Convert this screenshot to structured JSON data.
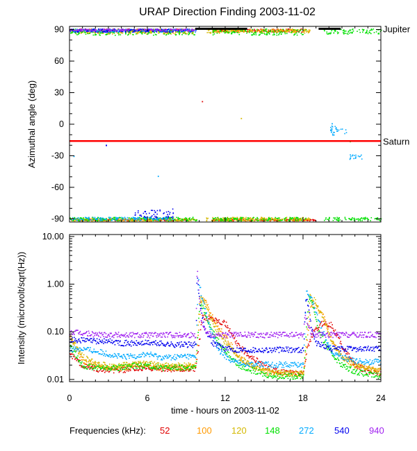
{
  "title": "URAP Direction Finding  2003-11-02",
  "colors": {
    "52": "#e00000",
    "100": "#ff9900",
    "120": "#d4b800",
    "148": "#00e000",
    "272": "#00aaff",
    "540": "#0000ee",
    "940": "#a020f0",
    "saturn_line": "#ff0000",
    "jupiter_line": "#000000"
  },
  "chart_data": [
    {
      "type": "scatter",
      "panel": "top",
      "title": "",
      "xlabel": "",
      "ylabel": "Azimuthal angle (deg)",
      "xlim": [
        0,
        24
      ],
      "ylim": [
        -93,
        93
      ],
      "yticks": [
        90,
        60,
        30,
        0,
        -30,
        -60,
        -90
      ],
      "yticklabels": [
        "90",
        "60",
        "30",
        "0",
        "-30",
        "-60",
        "-90"
      ],
      "reference_lines": [
        {
          "label": "Jupiter",
          "y": 90
        },
        {
          "label": "Saturn",
          "y": -16
        }
      ],
      "jupiter_segments": [
        [
          9.7,
          13.7
        ],
        [
          19.2,
          20.9
        ]
      ],
      "series_bands": [
        {
          "freq": "52",
          "clusters": [
            [
              0,
              9.8,
              89,
              91
            ],
            [
              11,
              18,
              88,
              91
            ],
            [
              0.5,
              9,
              -90,
              -91.5
            ],
            [
              11,
              19,
              -90,
              -91.5
            ]
          ]
        },
        {
          "freq": "100",
          "clusters": [
            [
              0,
              9.5,
              87,
              91
            ],
            [
              11,
              18.5,
              88,
              91
            ],
            [
              0,
              9.5,
              -89,
              -91.5
            ],
            [
              11,
              18.5,
              -89,
              -91.5
            ]
          ]
        },
        {
          "freq": "120",
          "clusters": [
            [
              0,
              9.8,
              86,
              91
            ],
            [
              10.5,
              18.5,
              87,
              91
            ],
            [
              0,
              9.8,
              -89,
              -91.5
            ],
            [
              10.5,
              18.5,
              -88,
              -91.5
            ]
          ]
        },
        {
          "freq": "148",
          "clusters": [
            [
              0,
              9.8,
              85,
              91
            ],
            [
              11,
              18.2,
              85,
              91
            ],
            [
              19.5,
              24,
              86,
              91
            ],
            [
              0,
              9.8,
              -88,
              -91.5
            ],
            [
              11,
              18.2,
              -88,
              -91.5
            ],
            [
              19.5,
              24,
              -88,
              -91.5
            ]
          ]
        },
        {
          "freq": "272",
          "clusters": [
            [
              0,
              9.8,
              88,
              91
            ],
            [
              20,
              21.5,
              -10,
              0
            ],
            [
              21.5,
              22.5,
              -28,
              -33
            ],
            [
              0,
              8,
              -88,
              -91
            ]
          ]
        },
        {
          "freq": "540",
          "clusters": [
            [
              0,
              9.5,
              88,
              91
            ],
            [
              2.8,
              2.8,
              -19,
              -20
            ],
            [
              5,
              8,
              -80,
              -89
            ]
          ]
        },
        {
          "freq": "940",
          "clusters": [
            [
              0,
              9.7,
              89,
              91
            ]
          ]
        }
      ],
      "isolated_points": [
        {
          "freq": "52",
          "x": 10.2,
          "y": 22
        },
        {
          "freq": "120",
          "x": 13.2,
          "y": 6
        },
        {
          "freq": "272",
          "x": 20.2,
          "y": 1
        },
        {
          "freq": "272",
          "x": 6.8,
          "y": -49
        },
        {
          "freq": "148",
          "x": 21.6,
          "y": -16
        },
        {
          "freq": "272",
          "x": 0.3,
          "y": -30
        }
      ]
    },
    {
      "type": "scatter",
      "panel": "bottom",
      "title": "",
      "xlabel": "time - hours on 2003-11-02",
      "ylabel": "Intensity (microvolt/sqrt(Hz))",
      "xlim": [
        0,
        24
      ],
      "ylim": [
        0.009,
        11
      ],
      "yscale": "log",
      "xticks": [
        0,
        6,
        12,
        18,
        24
      ],
      "xticklabels": [
        "0",
        "6",
        "12",
        "18",
        "24"
      ],
      "yticks": [
        10,
        1,
        0.1,
        0.01
      ],
      "yticklabels": [
        "10.00",
        "1.00",
        "0.10",
        "0.01"
      ],
      "series": [
        {
          "name": "52",
          "x": [
            0,
            1,
            2,
            3,
            4,
            5,
            6,
            7,
            8,
            9,
            9.7,
            10.2,
            10.6,
            11,
            12,
            13,
            14,
            15,
            16,
            17,
            18,
            18.3,
            18.8,
            19.5,
            20.2,
            21,
            22,
            23,
            24
          ],
          "y": [
            0.035,
            0.02,
            0.017,
            0.016,
            0.016,
            0.017,
            0.018,
            0.017,
            0.017,
            0.017,
            0.017,
            0.2,
            0.2,
            0.2,
            0.15,
            0.05,
            0.03,
            0.02,
            0.015,
            0.014,
            0.014,
            0.05,
            0.1,
            0.16,
            0.14,
            0.05,
            0.02,
            0.015,
            0.014
          ]
        },
        {
          "name": "100",
          "x": [
            0,
            1,
            2,
            3,
            4,
            5,
            6,
            7,
            8,
            9,
            9.7,
            10.1,
            10.5,
            11,
            12,
            13,
            14,
            15,
            16,
            17,
            18,
            18.6,
            19,
            19.6,
            20.2,
            21,
            22,
            23,
            24
          ],
          "y": [
            0.08,
            0.025,
            0.02,
            0.018,
            0.018,
            0.02,
            0.02,
            0.018,
            0.018,
            0.018,
            0.02,
            0.5,
            0.4,
            0.2,
            0.08,
            0.03,
            0.02,
            0.015,
            0.013,
            0.013,
            0.013,
            0.4,
            0.35,
            0.2,
            0.06,
            0.03,
            0.02,
            0.018,
            0.016
          ]
        },
        {
          "name": "120",
          "x": [
            0,
            1,
            2,
            3,
            4,
            5,
            6,
            7,
            8,
            9,
            9.7,
            10,
            10.4,
            11,
            12,
            13,
            14,
            15,
            16,
            17,
            18,
            18.5,
            18.9,
            19.5,
            20.2,
            21,
            22,
            23,
            24
          ],
          "y": [
            0.08,
            0.03,
            0.022,
            0.02,
            0.02,
            0.022,
            0.022,
            0.02,
            0.02,
            0.02,
            0.02,
            0.55,
            0.4,
            0.15,
            0.06,
            0.03,
            0.02,
            0.016,
            0.014,
            0.014,
            0.014,
            0.55,
            0.45,
            0.2,
            0.06,
            0.03,
            0.02,
            0.017,
            0.015
          ]
        },
        {
          "name": "148",
          "x": [
            0,
            1,
            2,
            3,
            4,
            5,
            6,
            7,
            8,
            9,
            9.7,
            10,
            10.3,
            11,
            12,
            13,
            14,
            15,
            16,
            17,
            18,
            18.4,
            18.7,
            19.2,
            20,
            21,
            22,
            23,
            24
          ],
          "y": [
            0.05,
            0.02,
            0.018,
            0.018,
            0.018,
            0.02,
            0.02,
            0.018,
            0.018,
            0.018,
            0.018,
            0.4,
            0.3,
            0.1,
            0.04,
            0.02,
            0.016,
            0.013,
            0.012,
            0.012,
            0.012,
            0.6,
            0.4,
            0.1,
            0.04,
            0.02,
            0.015,
            0.013,
            0.012
          ]
        },
        {
          "name": "272",
          "x": [
            0,
            1,
            2,
            3,
            4,
            5,
            6,
            7,
            8,
            9,
            9.7,
            9.9,
            10.2,
            10.8,
            11.5,
            12.5,
            13.5,
            15,
            16.5,
            18,
            18.2,
            18.5,
            18.9,
            19.5,
            20.2,
            21,
            22,
            23,
            24
          ],
          "y": [
            0.045,
            0.045,
            0.04,
            0.035,
            0.03,
            0.032,
            0.035,
            0.03,
            0.03,
            0.032,
            0.03,
            1.3,
            0.5,
            0.12,
            0.04,
            0.025,
            0.022,
            0.021,
            0.021,
            0.021,
            0.7,
            0.6,
            0.3,
            0.1,
            0.04,
            0.03,
            0.025,
            0.024,
            0.024
          ]
        },
        {
          "name": "540",
          "x": [
            0,
            1,
            2,
            3,
            4,
            5,
            6,
            7,
            8,
            9,
            9.7,
            9.8,
            10,
            10.4,
            11,
            12,
            13,
            14,
            15,
            16,
            17,
            18,
            18.2,
            18.4,
            18.7,
            19,
            20,
            22,
            24
          ],
          "y": [
            0.07,
            0.068,
            0.065,
            0.065,
            0.06,
            0.058,
            0.06,
            0.058,
            0.055,
            0.055,
            0.055,
            1.6,
            0.4,
            0.12,
            0.06,
            0.045,
            0.043,
            0.043,
            0.043,
            0.043,
            0.043,
            0.043,
            0.6,
            0.3,
            0.1,
            0.06,
            0.045,
            0.045,
            0.045
          ]
        },
        {
          "name": "940",
          "x": [
            0,
            1,
            2,
            3,
            4,
            5,
            6,
            7,
            8,
            9,
            9.7,
            9.8,
            9.9,
            10.1,
            10.5,
            11,
            12,
            14,
            16,
            18,
            18.1,
            18.3,
            18.6,
            19,
            20,
            22,
            24
          ],
          "y": [
            0.1,
            0.095,
            0.09,
            0.09,
            0.088,
            0.088,
            0.088,
            0.088,
            0.088,
            0.088,
            0.088,
            2.5,
            1,
            0.2,
            0.1,
            0.088,
            0.088,
            0.088,
            0.088,
            0.088,
            0.25,
            0.15,
            0.1,
            0.088,
            0.088,
            0.088,
            0.088
          ]
        }
      ]
    }
  ],
  "legend": {
    "lead": "Frequencies (kHz):",
    "items": [
      "52",
      "100",
      "120",
      "148",
      "272",
      "540",
      "940"
    ]
  }
}
